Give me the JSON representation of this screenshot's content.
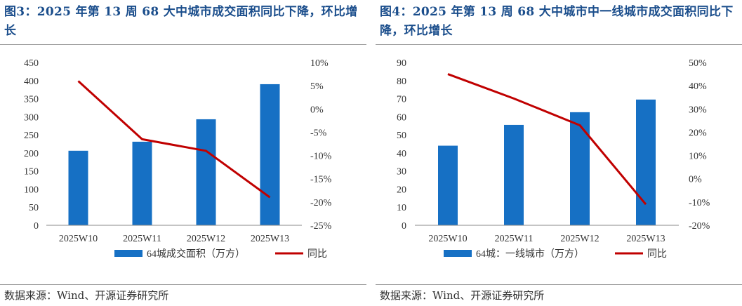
{
  "panels": [
    {
      "title": "图3：2025 年第 13 周 68 大中城市成交面积同比下降，环比增长",
      "source": "数据来源：Wind、开源证券研究所",
      "chart_data": {
        "type": "bar",
        "categories": [
          "2025W10",
          "2025W11",
          "2025W12",
          "2025W13"
        ],
        "series": [
          {
            "name": "64城成交面积（万方）",
            "kind": "bar",
            "axis": "left",
            "color": "#1670c4",
            "values": [
              206,
              231,
              293,
              390
            ]
          },
          {
            "name": "同比",
            "kind": "line",
            "axis": "right",
            "color": "#c00000",
            "values": [
              6,
              -6.5,
              -9,
              -19
            ]
          }
        ],
        "ylim": [
          0,
          450
        ],
        "yticks": [
          0,
          50,
          100,
          150,
          200,
          250,
          300,
          350,
          400,
          450
        ],
        "ytick_labels": [
          "0",
          "50",
          "100",
          "150",
          "200",
          "250",
          "300",
          "350",
          "400",
          "450"
        ],
        "y2lim": [
          -25,
          10
        ],
        "y2ticks": [
          -25,
          -20,
          -15,
          -10,
          -5,
          0,
          5,
          10
        ],
        "y2tick_labels": [
          "-25%",
          "-20%",
          "-15%",
          "-10%",
          "-5%",
          "0%",
          "5%",
          "10%"
        ],
        "legend": "bottom"
      }
    },
    {
      "title": "图4：2025 年第 13 周 68 大中城市中一线城市成交面积同比下降，环比增长",
      "source": "数据来源：Wind、开源证券研究所",
      "chart_data": {
        "type": "bar",
        "categories": [
          "2025W10",
          "2025W11",
          "2025W12",
          "2025W13"
        ],
        "series": [
          {
            "name": "64城：一线城市（万方）",
            "kind": "bar",
            "axis": "left",
            "color": "#1670c4",
            "values": [
              44,
              55.5,
              62.5,
              69.5
            ]
          },
          {
            "name": "同比",
            "kind": "line",
            "axis": "right",
            "color": "#c00000",
            "values": [
              45,
              34.5,
              23,
              -11
            ]
          }
        ],
        "ylim": [
          0,
          90
        ],
        "yticks": [
          0,
          10,
          20,
          30,
          40,
          50,
          60,
          70,
          80,
          90
        ],
        "ytick_labels": [
          "0",
          "10",
          "20",
          "30",
          "40",
          "50",
          "60",
          "70",
          "80",
          "90"
        ],
        "y2lim": [
          -20,
          50
        ],
        "y2ticks": [
          -20,
          -10,
          0,
          10,
          20,
          30,
          40,
          50
        ],
        "y2tick_labels": [
          "-20%",
          "-10%",
          "0%",
          "10%",
          "20%",
          "30%",
          "40%",
          "50%"
        ],
        "legend": "bottom"
      }
    }
  ]
}
